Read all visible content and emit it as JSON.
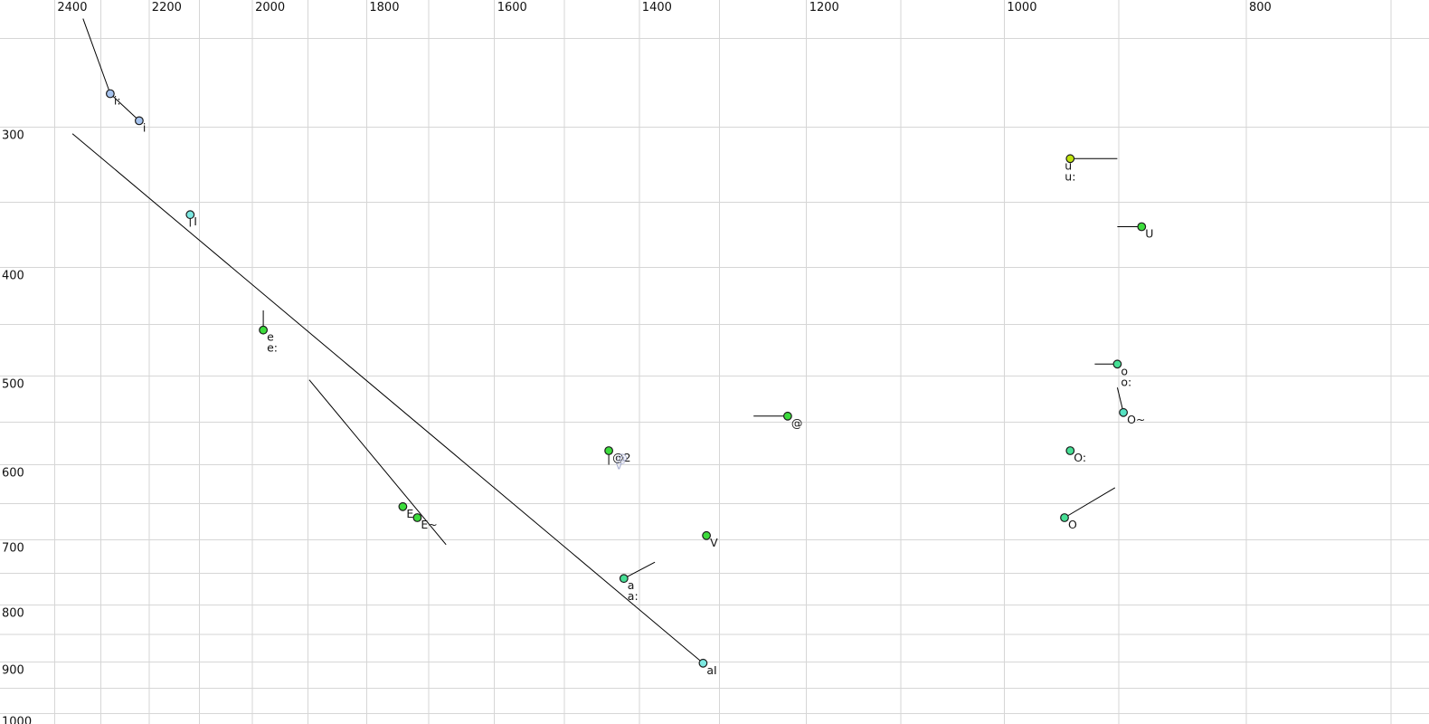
{
  "chart_data": {
    "type": "scatter",
    "description": "Vowel formant plot: F2 (Hz) decreasing left-to-right on top axis, F1 (Hz) increasing downward on left axis, both log-scaled",
    "x_axis": {
      "range": [
        2524,
        676
      ],
      "ticks": [
        2400,
        2200,
        2000,
        1800,
        1600,
        1400,
        1200,
        1000,
        800
      ],
      "grid": {
        "from": 2400,
        "to": 700,
        "step": 100
      }
    },
    "y_axis": {
      "range": [
        231,
        1022
      ],
      "ticks": [
        300,
        400,
        500,
        600,
        700,
        800,
        900,
        1000
      ],
      "grid": {
        "from": 250,
        "to": 1000,
        "step": 50
      }
    },
    "grid_on": true,
    "colors": {
      "blue": "#a6c3ee",
      "cyan": "#7ce8e1",
      "green": "#3cdc3c",
      "teal": "#46df95",
      "teal_cyan": "#55e2c2",
      "yellow": "#bfe30e",
      "outline": "#1b1b1b",
      "label": "#161616",
      "muted": "#a8aed0",
      "grid": "#d6d6d6",
      "line": "#000000"
    },
    "points": [
      {
        "labels": [
          "i:"
        ],
        "f2": 2280,
        "f1": 280,
        "color": "blue"
      },
      {
        "labels": [
          "i"
        ],
        "f2": 2220,
        "f1": 296,
        "color": "blue"
      },
      {
        "labels": [
          "I"
        ],
        "f2": 2118,
        "f1": 359,
        "color": "cyan",
        "tail": {
          "f2": 2118,
          "f1": 368
        }
      },
      {
        "labels": [
          "e",
          "e:"
        ],
        "f2": 1980,
        "f1": 455,
        "color": "green",
        "tail": {
          "f2": 1980,
          "f1": 437
        }
      },
      {
        "labels": [
          "E"
        ],
        "f2": 1741,
        "f1": 654,
        "color": "green"
      },
      {
        "labels": [
          "E~"
        ],
        "f2": 1718,
        "f1": 669,
        "color": "green"
      },
      {
        "labels": [
          "@"
        ],
        "f2": 1221,
        "f1": 543,
        "color": "green",
        "tail": {
          "f2": 1260,
          "f1": 543
        }
      },
      {
        "labels": [
          "@2"
        ],
        "f2": 1440,
        "f1": 583,
        "color": "green",
        "tail": {
          "f2": 1440,
          "f1": 600
        }
      },
      {
        "labels": [
          "V"
        ],
        "f2": 1316,
        "f1": 694,
        "color": "green"
      },
      {
        "labels": [
          "a",
          "a:"
        ],
        "f2": 1420,
        "f1": 758,
        "color": "teal",
        "tail": {
          "f2": 1380,
          "f1": 733
        }
      },
      {
        "labels": [
          "aI"
        ],
        "f2": 1320,
        "f1": 902,
        "color": "cyan"
      },
      {
        "labels": [
          "u",
          "u:"
        ],
        "f2": 941,
        "f1": 320,
        "color": "yellow",
        "tail": {
          "f2": 901,
          "f1": 320
        },
        "label_offset": [
          -6,
          12
        ]
      },
      {
        "labels": [
          "U"
        ],
        "f2": 881,
        "f1": 368,
        "color": "green",
        "tail": {
          "f2": 901,
          "f1": 368
        }
      },
      {
        "labels": [
          "o",
          "o:"
        ],
        "f2": 901,
        "f1": 488,
        "color": "teal",
        "tail": {
          "f2": 920,
          "f1": 488
        }
      },
      {
        "labels": [
          "O~"
        ],
        "f2": 896,
        "f1": 539,
        "color": "teal_cyan",
        "tail": {
          "f2": 901,
          "f1": 512
        }
      },
      {
        "labels": [
          "O:"
        ],
        "f2": 941,
        "f1": 583,
        "color": "teal"
      },
      {
        "labels": [
          "O"
        ],
        "f2": 946,
        "f1": 669,
        "color": "teal",
        "tail": {
          "f2": 903,
          "f1": 629
        }
      }
    ],
    "annotations": [
      {
        "text": "@",
        "f2": 1430,
        "f1": 592,
        "color": "muted"
      },
      {
        "text": "v",
        "f2": 1431,
        "f1": 601,
        "color": "muted"
      }
    ],
    "segments": [
      {
        "f2a": 2338,
        "f1a": 240,
        "f2b": 2280,
        "f1b": 280
      },
      {
        "f2a": 2280,
        "f1a": 280,
        "f2b": 2220,
        "f1b": 296
      },
      {
        "f2a": 2361,
        "f1a": 304,
        "f2b": 1320,
        "f1b": 902
      },
      {
        "f2a": 1898,
        "f1a": 504,
        "f2b": 1673,
        "f1b": 707
      }
    ]
  }
}
